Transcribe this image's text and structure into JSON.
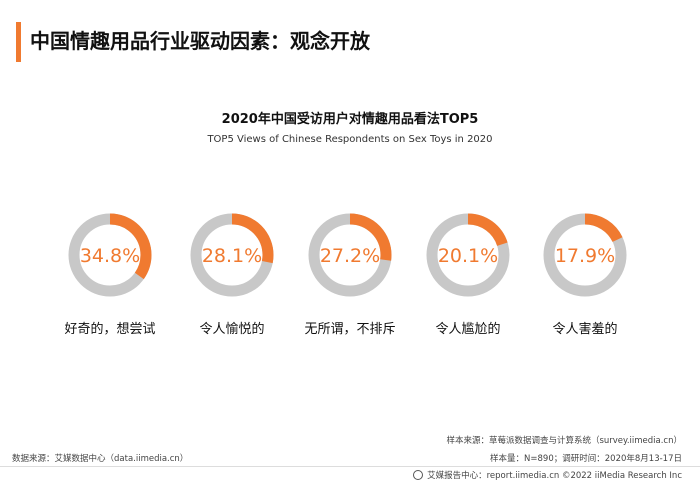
{
  "header": {
    "title": "中国情趣用品行业驱动因素：观念开放",
    "accent_color": "#f07a30"
  },
  "chart_data": {
    "type": "pie",
    "style": "donut",
    "title": "2020年中国受访用户对情趣用品看法TOP5",
    "subtitle": "TOP5 Views of Chinese Respondents on Sex Toys in 2020",
    "unit": "%",
    "colors": {
      "highlight": "#f07a30",
      "remainder": "#c8c8c8",
      "label": "#f07a30"
    },
    "items": [
      {
        "label": "好奇的，想尝试",
        "value": 34.8,
        "value_label": "34.8%"
      },
      {
        "label": "令人愉悦的",
        "value": 28.1,
        "value_label": "28.1%"
      },
      {
        "label": "无所谓，不排斥",
        "value": 27.2,
        "value_label": "27.2%"
      },
      {
        "label": "令人尴尬的",
        "value": 20.1,
        "value_label": "20.1%"
      },
      {
        "label": "令人害羞的",
        "value": 17.9,
        "value_label": "17.9%"
      }
    ]
  },
  "sources": {
    "data_source": "数据来源：艾媒数据中心（data.iimedia.cn）",
    "sample_source": "样本来源：草莓派数据调查与计算系统（survey.iimedia.cn）",
    "sample_info": "样本量：N=890；调研时间：2020年8月13-17日"
  },
  "footer": {
    "text": "艾媒报告中心：report.iimedia.cn  ©2022  iiMedia Research Inc",
    "icon": "iimedia-logo-icon"
  }
}
